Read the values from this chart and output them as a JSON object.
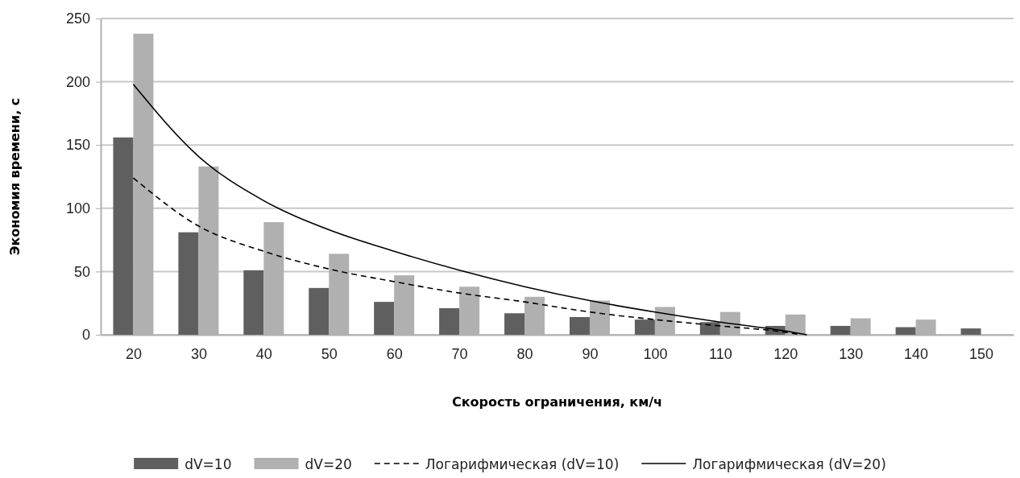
{
  "chart_data": {
    "type": "bar",
    "xlabel": "Скорость ограничения, км/ч",
    "ylabel": "Экономия времени, с",
    "x": [
      20,
      30,
      40,
      50,
      60,
      70,
      80,
      90,
      100,
      110,
      120,
      130,
      140,
      150
    ],
    "xlim": [
      15,
      155
    ],
    "xticks": [
      20,
      30,
      40,
      50,
      60,
      70,
      80,
      90,
      100,
      110,
      120,
      130,
      140,
      150
    ],
    "ylim": [
      0,
      250
    ],
    "yticks": [
      0,
      50,
      100,
      150,
      200,
      250
    ],
    "grid": "y",
    "legend": "bottom",
    "series": [
      {
        "name": "dV=10",
        "color": "#5f5f5f",
        "values": [
          156,
          81,
          51,
          37,
          26,
          21,
          17,
          14,
          12,
          10,
          7,
          7,
          6,
          5
        ]
      },
      {
        "name": "dV=20",
        "color": "#b0b0b0",
        "values": [
          238,
          133,
          89,
          64,
          47,
          38,
          30,
          27,
          22,
          18,
          16,
          13,
          12,
          null
        ]
      },
      {
        "name": "Логарифмическая (dV=10)",
        "type": "line",
        "color": "#000000",
        "line_style": "dashed",
        "x": [
          20,
          30,
          40,
          50,
          60,
          70,
          80,
          90,
          100,
          110,
          120,
          122.4
        ],
        "values": [
          124,
          86,
          66,
          52,
          42,
          33,
          26,
          18,
          12,
          7,
          2,
          0
        ]
      },
      {
        "name": "Логарифмическая (dV=20)",
        "type": "line",
        "color": "#000000",
        "line_style": "solid",
        "x": [
          20,
          30,
          40,
          50,
          60,
          70,
          80,
          90,
          100,
          110,
          120,
          123.3
        ],
        "values": [
          198,
          141,
          106,
          83,
          66,
          51,
          38,
          27,
          18,
          10,
          3,
          0
        ]
      }
    ]
  }
}
